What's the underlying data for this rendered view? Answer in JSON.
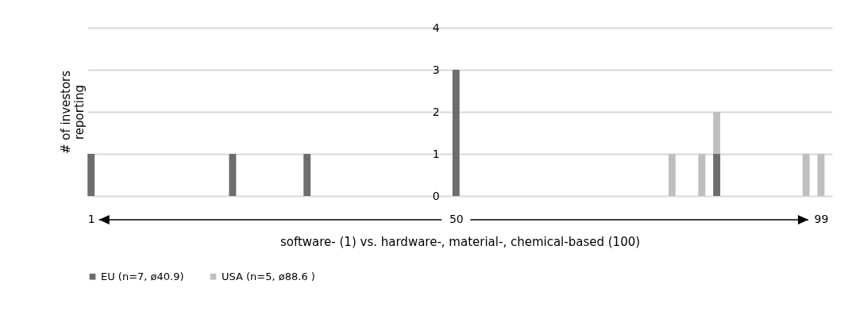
{
  "chart_data": {
    "type": "bar",
    "stacked": true,
    "xlabel": "software- (1) vs. hardware-, material-, chemical-based (100)",
    "ylabel": "# of investors reporting",
    "xlim": [
      0.5,
      100.5
    ],
    "xticks": [
      1,
      50,
      99
    ],
    "ylim": [
      0,
      4
    ],
    "yticks": [
      0,
      1,
      2,
      3,
      4
    ],
    "grid": "y",
    "legend": "bottom",
    "x": [
      1,
      20,
      30,
      50,
      79,
      83,
      85,
      97,
      99
    ],
    "series": [
      {
        "name": "EU (n=7, ø40.9)",
        "color": "#6d6d6d",
        "values": [
          1,
          1,
          1,
          3,
          null,
          null,
          1,
          null,
          null
        ]
      },
      {
        "name": "USA (n=5, ø88.6 )",
        "color": "#bfbfbf",
        "values": [
          null,
          null,
          null,
          null,
          1,
          1,
          1,
          1,
          1
        ]
      }
    ]
  }
}
